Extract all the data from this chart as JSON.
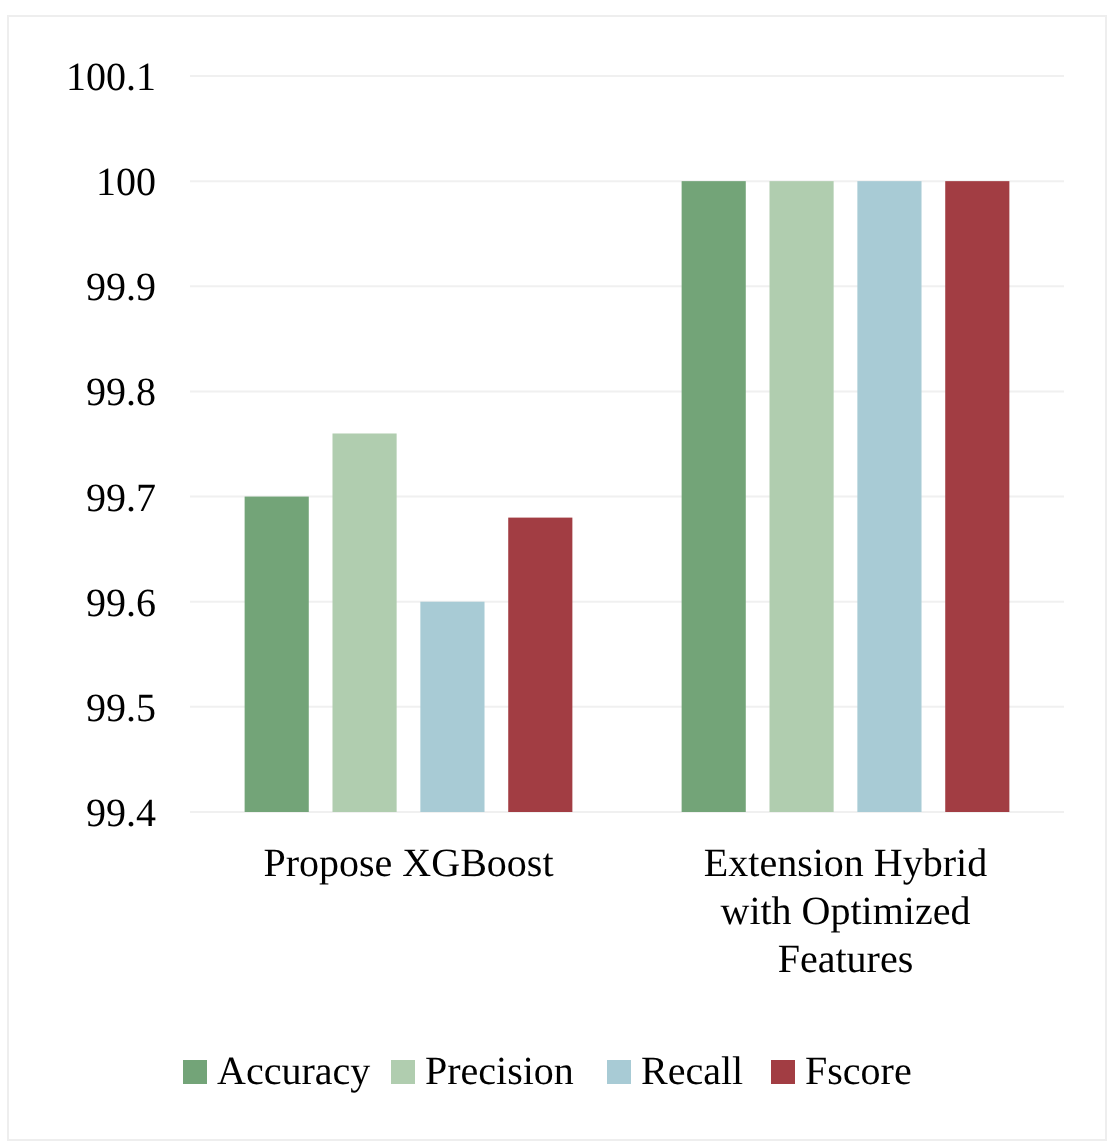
{
  "chart_data": {
    "type": "bar",
    "categories": [
      "Propose XGBoost",
      "Extension Hybrid with Optimized Features"
    ],
    "series": [
      {
        "name": "Accuracy",
        "color": "#73a478",
        "values": [
          99.7,
          100
        ]
      },
      {
        "name": "Precision",
        "color": "#b0cdaf",
        "values": [
          99.76,
          100
        ]
      },
      {
        "name": "Recall",
        "color": "#a8cbd5",
        "values": [
          99.6,
          100
        ]
      },
      {
        "name": "Fscore",
        "color": "#a23d43",
        "values": [
          99.68,
          100
        ]
      }
    ],
    "ylim": [
      99.4,
      100.1
    ],
    "yticks": [
      99.4,
      99.5,
      99.6,
      99.7,
      99.8,
      99.9,
      100,
      100.1
    ],
    "grid": "y",
    "legend": "bottom"
  }
}
